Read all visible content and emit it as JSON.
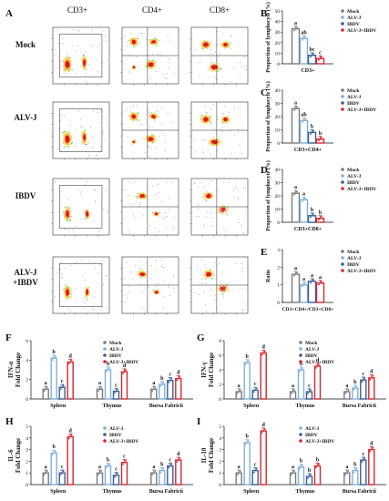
{
  "panels": {
    "A": "A",
    "B": "B",
    "C": "C",
    "D": "D",
    "E": "E",
    "F": "F",
    "G": "G",
    "H": "H",
    "I": "I"
  },
  "flow": {
    "col_headers": [
      "CD3+",
      "CD4+",
      "CD8+"
    ],
    "row_labels": [
      "Mock",
      "ALV-J",
      "IBDV",
      "ALV-J\n+IBDV"
    ],
    "cells": [
      [
        "density",
        "density",
        "density"
      ],
      [
        "density",
        "density",
        "density"
      ],
      [
        "sparse",
        "sparse",
        "sparse"
      ],
      [
        "sparse",
        "sparse",
        "sparse"
      ]
    ]
  },
  "colors": {
    "Mock": "#7a7a7a",
    "ALV-J": "#7fb0d8",
    "IBDV": "#3a5f93",
    "ALV-J+IBDV": "#d6262f"
  },
  "chart_data": [
    {
      "id": "B",
      "type": "bar",
      "ylabel": "Proportion of lymphocyte (%)",
      "ylim": [
        0,
        50
      ],
      "yticks": [
        0,
        10,
        20,
        30,
        40,
        50
      ],
      "xlabel": "CD3+",
      "legend": [
        "Mock",
        "ALV-J",
        "IBDV",
        "ALV-J+IBDV"
      ],
      "groups": [
        "CD3+"
      ],
      "series": [
        {
          "name": "Mock",
          "values": [
            33
          ],
          "sig": [
            "a"
          ]
        },
        {
          "name": "ALV-J",
          "values": [
            24
          ],
          "sig": [
            "ab"
          ]
        },
        {
          "name": "IBDV",
          "values": [
            8
          ],
          "sig": [
            "bc"
          ]
        },
        {
          "name": "ALV-J+IBDV",
          "values": [
            5
          ],
          "sig": [
            "c"
          ]
        }
      ]
    },
    {
      "id": "C",
      "type": "bar",
      "ylabel": "Proportion of lymphocyte (%)",
      "ylim": [
        0,
        40
      ],
      "yticks": [
        0,
        10,
        20,
        30,
        40
      ],
      "xlabel": "CD3+CD4+",
      "legend": [
        "Mock",
        "ALV-J",
        "IBDV",
        "ALV-J+IBDV"
      ],
      "groups": [
        "CD3+CD4+"
      ],
      "series": [
        {
          "name": "Mock",
          "values": [
            26
          ],
          "sig": [
            "a"
          ]
        },
        {
          "name": "ALV-J",
          "values": [
            17
          ],
          "sig": [
            "ab"
          ]
        },
        {
          "name": "IBDV",
          "values": [
            8
          ],
          "sig": [
            "b"
          ]
        },
        {
          "name": "ALV-J+IBDV",
          "values": [
            3
          ],
          "sig": [
            "b"
          ]
        }
      ]
    },
    {
      "id": "D",
      "type": "bar",
      "ylabel": "Proportion of lymphocyte (%)",
      "ylim": [
        0,
        40
      ],
      "yticks": [
        0,
        10,
        20,
        30,
        40
      ],
      "xlabel": "CD3+CD8+",
      "legend": [
        "Mock",
        "ALV-J",
        "IBDV",
        "ALV-J+IBDV"
      ],
      "groups": [
        "CD3+CD8+"
      ],
      "series": [
        {
          "name": "Mock",
          "values": [
            22
          ],
          "sig": [
            "a"
          ]
        },
        {
          "name": "ALV-J",
          "values": [
            17
          ],
          "sig": [
            "a"
          ]
        },
        {
          "name": "IBDV",
          "values": [
            5
          ],
          "sig": [
            "b"
          ]
        },
        {
          "name": "ALV-J+IBDV",
          "values": [
            3
          ],
          "sig": [
            "b"
          ]
        }
      ]
    },
    {
      "id": "E",
      "type": "bar",
      "ylabel": "Ratio",
      "ylim": [
        0,
        3
      ],
      "yticks": [
        0,
        1,
        2,
        3
      ],
      "xlabel": "CD3+CD4+/CD3+CD8+",
      "legend": [
        "Mock",
        "ALV-J",
        "IBDV",
        "ALV-J+IBDV"
      ],
      "groups": [
        "CD3+CD4+/CD3+CD8+"
      ],
      "series": [
        {
          "name": "Mock",
          "values": [
            1.6
          ],
          "sig": [
            "a"
          ]
        },
        {
          "name": "ALV-J",
          "values": [
            1.0
          ],
          "sig": [
            "a"
          ]
        },
        {
          "name": "IBDV",
          "values": [
            1.2
          ],
          "sig": [
            "a"
          ]
        },
        {
          "name": "ALV-J+IBDV",
          "values": [
            1.1
          ],
          "sig": [
            "a"
          ]
        }
      ]
    },
    {
      "id": "F",
      "type": "bar",
      "ylabel": "IFN-α Fold Change",
      "ylim": [
        0,
        6
      ],
      "yticks": [
        0,
        2,
        4,
        6
      ],
      "legend": [
        "Mock",
        "ALV-J",
        "IBDV",
        "ALV-J+IBDV"
      ],
      "groups": [
        "Spleen",
        "Thymus",
        "Bursa Fabricii"
      ],
      "series": [
        {
          "name": "Mock",
          "values": [
            1,
            1,
            1
          ],
          "sig": [
            "a",
            "a",
            "a"
          ]
        },
        {
          "name": "ALV-J",
          "values": [
            4.2,
            3.0,
            1.5
          ],
          "sig": [
            "b",
            "b",
            "b"
          ]
        },
        {
          "name": "IBDV",
          "values": [
            1.2,
            0.8,
            1.9
          ],
          "sig": [
            "c",
            "c",
            "c"
          ]
        },
        {
          "name": "ALV-J+IBDV",
          "values": [
            3.8,
            2.8,
            2.1
          ],
          "sig": [
            "d",
            "d",
            "d"
          ]
        }
      ]
    },
    {
      "id": "G",
      "type": "bar",
      "ylabel": "IFN-γ Fold Change",
      "ylim": [
        0,
        8
      ],
      "yticks": [
        0,
        2,
        4,
        6,
        8
      ],
      "legend": [
        "Mock",
        "ALV-J",
        "IBDV",
        "ALV-J+IBDV"
      ],
      "groups": [
        "Spleen",
        "Thymus",
        "Bursa Fabricii"
      ],
      "series": [
        {
          "name": "Mock",
          "values": [
            1,
            1,
            1
          ],
          "sig": [
            "a",
            "a",
            "a"
          ]
        },
        {
          "name": "ALV-J",
          "values": [
            5.0,
            4.0,
            1.5
          ],
          "sig": [
            "b",
            "b",
            "b"
          ]
        },
        {
          "name": "IBDV",
          "values": [
            1.2,
            1.0,
            2.6
          ],
          "sig": [
            "c",
            "c",
            "c"
          ]
        },
        {
          "name": "ALV-J+IBDV",
          "values": [
            6.3,
            4.5,
            2.9
          ],
          "sig": [
            "d",
            "d",
            "d"
          ]
        }
      ]
    },
    {
      "id": "H",
      "type": "bar",
      "ylabel": "IL-6 Fold Change",
      "ylim": [
        0,
        5
      ],
      "yticks": [
        0,
        1,
        2,
        3,
        4,
        5
      ],
      "legend": [
        "ALV-J",
        "IBDV",
        "ALV-J+IBDV"
      ],
      "groups": [
        "Spleen",
        "Thymus",
        "Bursa Fabricii"
      ],
      "series": [
        {
          "name": "Mock",
          "values": [
            1,
            1,
            1
          ],
          "sig": [
            "a",
            "a",
            "a"
          ]
        },
        {
          "name": "ALV-J",
          "values": [
            2.7,
            1.6,
            1.2
          ],
          "sig": [
            "b",
            "b",
            "b"
          ]
        },
        {
          "name": "IBDV",
          "values": [
            1.0,
            0.8,
            1.6
          ],
          "sig": [
            "c",
            "c",
            "c"
          ]
        },
        {
          "name": "ALV-J+IBDV",
          "values": [
            4.1,
            1.9,
            2.1
          ],
          "sig": [
            "d",
            "c",
            "d"
          ]
        }
      ]
    },
    {
      "id": "I",
      "type": "bar",
      "ylabel": "IL-10 Fold Change",
      "ylim": [
        0,
        5
      ],
      "yticks": [
        0,
        1,
        2,
        3,
        4,
        5
      ],
      "legend": [
        "ALV-J",
        "IBDV",
        "ALV-J+IBDV"
      ],
      "groups": [
        "Spleen",
        "Thymus",
        "Bursa Fabricii"
      ],
      "series": [
        {
          "name": "Mock",
          "values": [
            1,
            1,
            1
          ],
          "sig": [
            "a",
            "a",
            "a"
          ]
        },
        {
          "name": "ALV-J",
          "values": [
            3.6,
            1.5,
            1.2
          ],
          "sig": [
            "b",
            "b",
            "b"
          ]
        },
        {
          "name": "IBDV",
          "values": [
            1.2,
            0.7,
            2.1
          ],
          "sig": [
            "c",
            "b",
            "c"
          ]
        },
        {
          "name": "ALV-J+IBDV",
          "values": [
            4.6,
            1.6,
            3.0
          ],
          "sig": [
            "d",
            "b",
            "d"
          ]
        }
      ]
    }
  ]
}
